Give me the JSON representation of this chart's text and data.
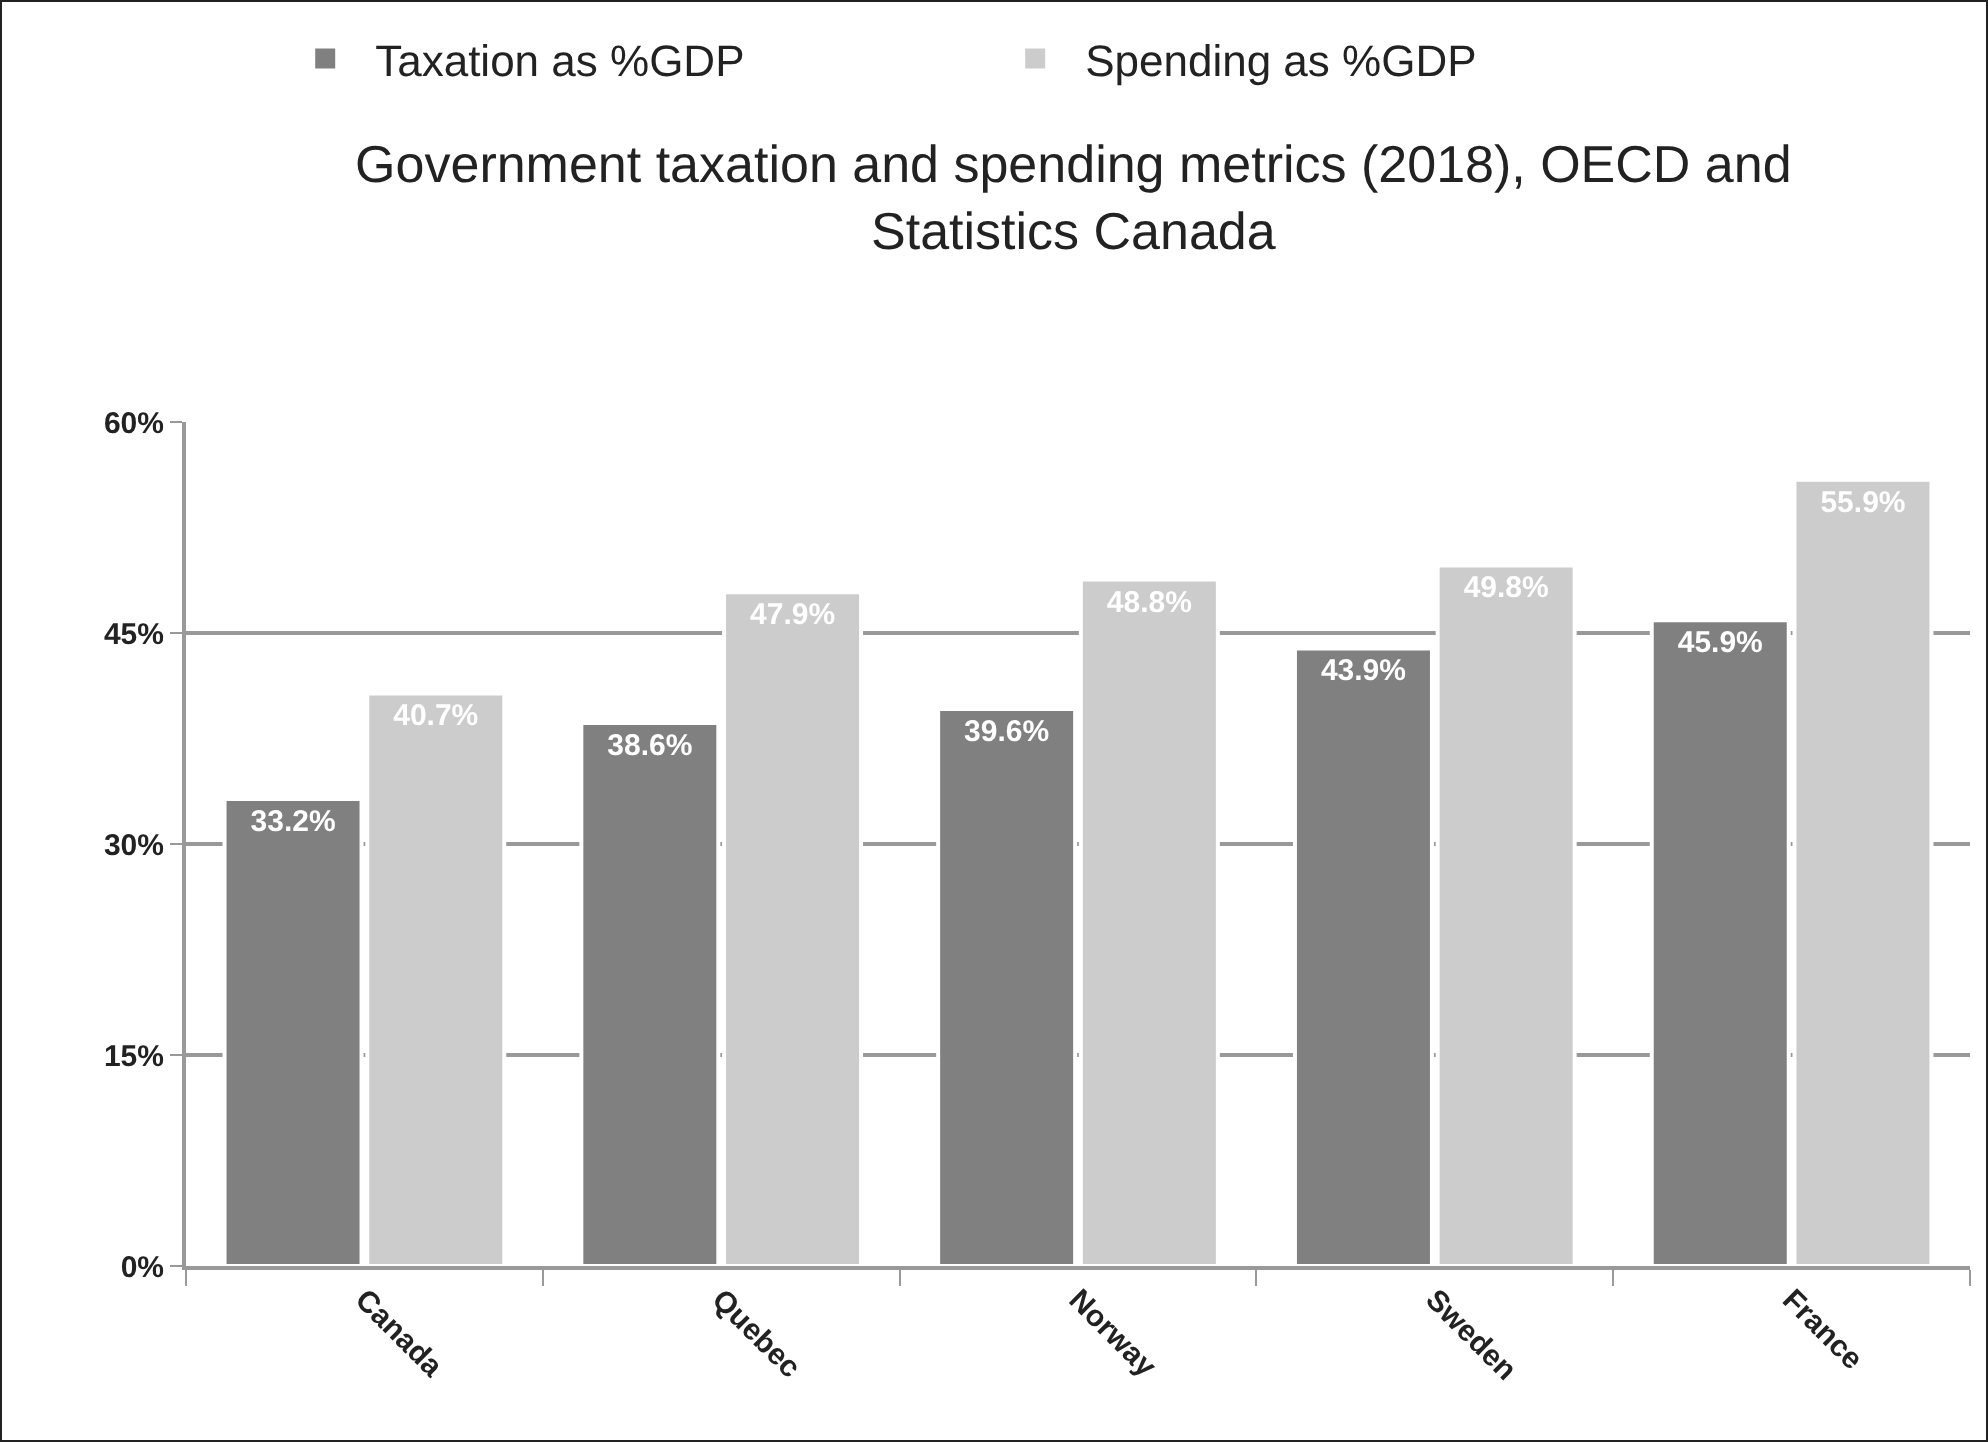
{
  "chart_data": {
    "type": "bar",
    "title": "Government taxation and spending metrics (2018), OECD and Statistics Canada",
    "categories": [
      "Canada",
      "Quebec",
      "Norway",
      "Sweden",
      "France"
    ],
    "series": [
      {
        "name": "Taxation as %GDP",
        "color": "#808080",
        "values": [
          33.2,
          38.6,
          39.6,
          43.9,
          45.9
        ],
        "value_labels": [
          "33.2%",
          "38.6%",
          "39.6%",
          "43.9%",
          "45.9%"
        ]
      },
      {
        "name": "Spending as %GDP",
        "color": "#cccccc",
        "values": [
          40.7,
          47.9,
          48.8,
          49.8,
          55.9
        ],
        "value_labels": [
          "40.7%",
          "47.9%",
          "48.8%",
          "49.8%",
          "55.9%"
        ]
      }
    ],
    "ylim": [
      0,
      60
    ],
    "yticks": [
      {
        "value": 0,
        "label": "0%"
      },
      {
        "value": 15,
        "label": "15%"
      },
      {
        "value": 30,
        "label": "30%"
      },
      {
        "value": 45,
        "label": "45%"
      },
      {
        "value": 60,
        "label": "60%"
      }
    ],
    "grid": "y",
    "legend": "top"
  }
}
